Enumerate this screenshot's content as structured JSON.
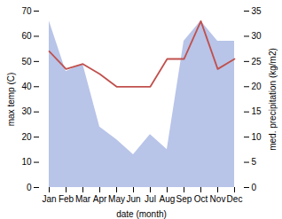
{
  "chart_data": {
    "type": "line",
    "categories": [
      "Jan",
      "Feb",
      "Mar",
      "Apr",
      "May",
      "Jun",
      "Jul",
      "Aug",
      "Sep",
      "Oct",
      "Nov",
      "Dec"
    ],
    "xlabel": "date (month)",
    "ylabel": "max temp (C)",
    "y2label": "med. precipitation (kg/m2)",
    "series": [
      {
        "type": "area",
        "axis": "y2",
        "color": "#b8c4e8",
        "values": [
          33,
          23,
          24.5,
          12,
          9.5,
          6.5,
          10.5,
          7.5,
          29,
          33,
          29,
          29
        ]
      },
      {
        "type": "line",
        "color": "#c0504d",
        "values": [
          54,
          47,
          49,
          45,
          40,
          40,
          40,
          51,
          51,
          66,
          47,
          51
        ]
      }
    ],
    "ylim": [
      0,
      70
    ],
    "yticks": [
      0,
      10,
      20,
      30,
      40,
      50,
      60,
      70
    ],
    "y2lim": [
      0,
      35
    ],
    "y2ticks": [
      0,
      5,
      10,
      15,
      20,
      25,
      30,
      35
    ],
    "grid": false
  }
}
